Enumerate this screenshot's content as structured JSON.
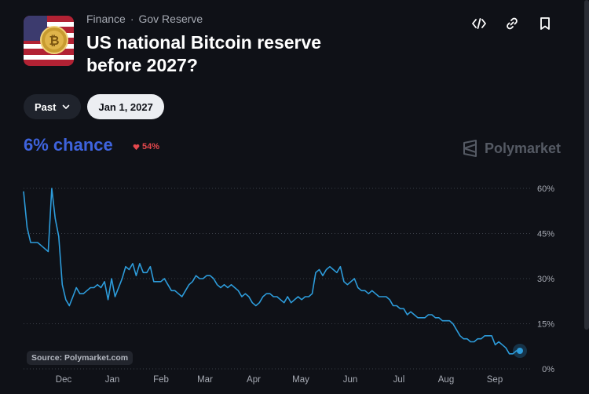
{
  "market": {
    "category": "Finance",
    "subcategory": "Gov Reserve",
    "title": "US national Bitcoin reserve before 2027?",
    "thumbnail_icon": "bitcoin-flag-thumbnail"
  },
  "actions": [
    {
      "name": "embed-button",
      "icon": "code-icon"
    },
    {
      "name": "copy-link-button",
      "icon": "link-icon"
    },
    {
      "name": "bookmark-button",
      "icon": "bookmark-icon"
    }
  ],
  "filters": {
    "past_label": "Past",
    "date_label": "Jan 1, 2027"
  },
  "stats": {
    "chance": "6% chance",
    "change": "54%",
    "change_direction": "down"
  },
  "brand": {
    "name": "Polymarket"
  },
  "colors": {
    "chance": "#3e63dd",
    "line": "#2d9cdb",
    "down": "#e5484d",
    "background": "#0f1117"
  },
  "chart_data": {
    "type": "line",
    "y_ticks": [
      "60%",
      "45%",
      "30%",
      "15%",
      "0%"
    ],
    "x_ticks": [
      "Dec",
      "Jan",
      "Feb",
      "Mar",
      "Apr",
      "May",
      "Jun",
      "Jul",
      "Aug",
      "Sep"
    ],
    "ylim": [
      0,
      60
    ],
    "x": [
      0,
      1,
      2,
      3,
      4,
      5,
      6,
      7,
      8,
      9,
      10,
      11,
      12,
      13,
      14,
      15,
      16,
      17,
      18,
      19,
      20,
      21,
      22,
      23,
      24,
      25,
      26,
      27,
      28,
      29,
      30,
      31,
      32,
      33,
      34,
      35,
      36,
      37,
      38,
      39,
      40,
      41,
      42,
      43,
      44,
      45,
      46,
      47,
      48,
      49,
      50,
      51,
      52,
      53,
      54,
      55,
      56,
      57,
      58,
      59,
      60,
      61,
      62,
      63,
      64,
      65,
      66,
      67,
      68,
      69,
      70,
      71,
      72,
      73,
      74,
      75,
      76,
      77,
      78,
      79,
      80,
      81,
      82,
      83,
      84,
      85,
      86,
      87,
      88,
      89,
      90,
      91,
      92,
      93,
      94,
      95,
      96,
      97,
      98,
      99,
      100,
      101,
      102,
      103,
      104,
      105,
      106,
      107,
      108,
      109,
      110,
      111,
      112,
      113,
      114,
      115,
      116,
      117,
      118,
      119,
      120,
      121,
      122,
      123,
      124,
      125,
      126,
      127,
      128,
      129,
      130,
      131,
      132,
      133,
      134,
      135,
      136,
      137,
      138,
      139,
      140,
      141
    ],
    "values": [
      59,
      47,
      42,
      42,
      42,
      41,
      40,
      39,
      60,
      50,
      44,
      28,
      23,
      21,
      24,
      27,
      25,
      25,
      26,
      27,
      27,
      28,
      27,
      29,
      23,
      30,
      24,
      27,
      30,
      34,
      33,
      35,
      31,
      35,
      32,
      32,
      34,
      29,
      29,
      29,
      30,
      28,
      26,
      26,
      25,
      24,
      26,
      28,
      29,
      31,
      30,
      30,
      31,
      31,
      30,
      28,
      27,
      28,
      27,
      28,
      27,
      26,
      24,
      25,
      24,
      22,
      21,
      22,
      24,
      25,
      25,
      24,
      24,
      23,
      22,
      24,
      22,
      23,
      24,
      23,
      24,
      24,
      25,
      32,
      33,
      31,
      33,
      34,
      33,
      32,
      34,
      29,
      28,
      29,
      30,
      27,
      26,
      26,
      25,
      26,
      25,
      24,
      24,
      24,
      23,
      21,
      21,
      20,
      20,
      18,
      19,
      18,
      17,
      17,
      17,
      18,
      18,
      17,
      17,
      16,
      16,
      16,
      15,
      13,
      11,
      10,
      10,
      9,
      9,
      10,
      10,
      11,
      11,
      11,
      8,
      9,
      8,
      7,
      5,
      5,
      6,
      6
    ]
  },
  "source_label": "Source: Polymarket.com"
}
